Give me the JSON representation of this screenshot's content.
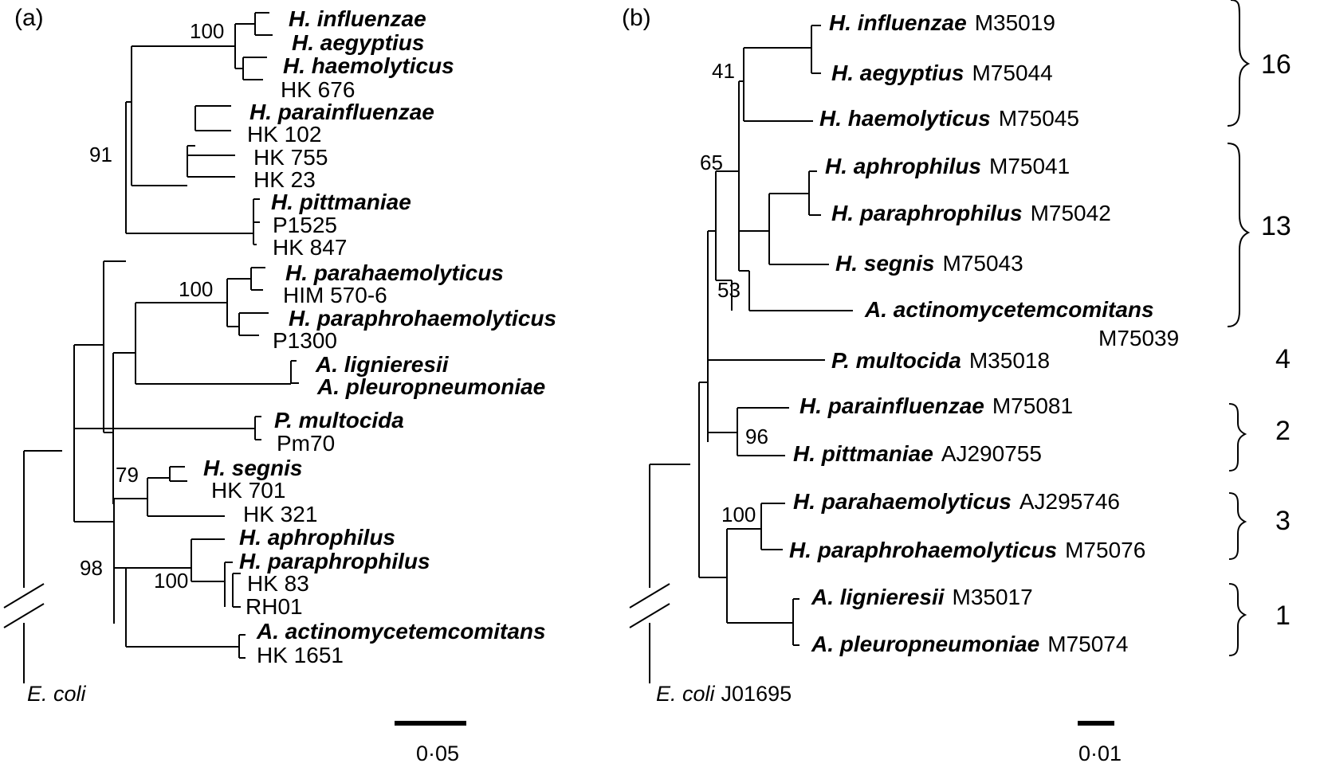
{
  "panel_a": {
    "label": "(a)",
    "root_label": "E. coli",
    "scale": "0·05",
    "bootstraps": [
      "100",
      "91",
      "100",
      "79",
      "98",
      "100"
    ],
    "taxa": [
      {
        "genus": "H. influenzae",
        "rest": ""
      },
      {
        "genus": "H. aegyptius",
        "rest": ""
      },
      {
        "genus": "H. haemolyticus",
        "rest": ""
      },
      {
        "genus": "",
        "rest": "HK 676"
      },
      {
        "genus": "H. parainfluenzae",
        "rest": ""
      },
      {
        "genus": "",
        "rest": "HK 102"
      },
      {
        "genus": "",
        "rest": "HK 755"
      },
      {
        "genus": "",
        "rest": "HK 23"
      },
      {
        "genus": "H. pittmaniae",
        "rest": ""
      },
      {
        "genus": "",
        "rest": "P1525"
      },
      {
        "genus": "",
        "rest": "HK 847"
      },
      {
        "genus": "H. parahaemolyticus",
        "rest": ""
      },
      {
        "genus": "",
        "rest": "HIM 570-6"
      },
      {
        "genus": "H. paraphrohaemolyticus",
        "rest": ""
      },
      {
        "genus": "",
        "rest": "P1300"
      },
      {
        "genus": "A. lignieresii",
        "rest": ""
      },
      {
        "genus": "A. pleuropneumoniae",
        "rest": ""
      },
      {
        "genus": "P. multocida",
        "rest": ""
      },
      {
        "genus": "",
        "rest": "Pm70"
      },
      {
        "genus": "H. segnis",
        "rest": ""
      },
      {
        "genus": "",
        "rest": "HK 701"
      },
      {
        "genus": "",
        "rest": "HK 321"
      },
      {
        "genus": "H. aphrophilus",
        "rest": ""
      },
      {
        "genus": "H. paraphrophilus",
        "rest": ""
      },
      {
        "genus": "",
        "rest": "HK 83"
      },
      {
        "genus": "",
        "rest": "RH01"
      },
      {
        "genus": "A. actinomycetemcomitans",
        "rest": ""
      },
      {
        "genus": "",
        "rest": "HK 1651"
      }
    ]
  },
  "panel_b": {
    "label": "(b)",
    "root_label_italic": "E. coli",
    "root_label_rest": "J01695",
    "scale": "0·01",
    "bootstraps": [
      "41",
      "65",
      "53",
      "96",
      "100"
    ],
    "taxa": [
      {
        "genus": "H. influenzae",
        "rest": "M35019"
      },
      {
        "genus": "H. aegyptius",
        "rest": "M75044"
      },
      {
        "genus": "H. haemolyticus",
        "rest": "M75045"
      },
      {
        "genus": "H. aphrophilus",
        "rest": "M75041"
      },
      {
        "genus": "H. paraphrophilus",
        "rest": "M75042"
      },
      {
        "genus": "H. segnis",
        "rest": "M75043"
      },
      {
        "genus": "A. actinomycetemcomitans",
        "rest": ""
      },
      {
        "genus": "",
        "rest": "M75039"
      },
      {
        "genus": "P. multocida",
        "rest": "M35018"
      },
      {
        "genus": "H. parainfluenzae",
        "rest": "M75081"
      },
      {
        "genus": "H. pittmaniae",
        "rest": "AJ290755"
      },
      {
        "genus": "H. parahaemolyticus",
        "rest": "AJ295746"
      },
      {
        "genus": "H. paraphrohaemolyticus",
        "rest": "M75076"
      },
      {
        "genus": "A. lignieresii",
        "rest": "M35017"
      },
      {
        "genus": "A. pleuropneumoniae",
        "rest": "M75074"
      }
    ],
    "groups": [
      "16",
      "13",
      "4",
      "2",
      "3",
      "1"
    ]
  }
}
